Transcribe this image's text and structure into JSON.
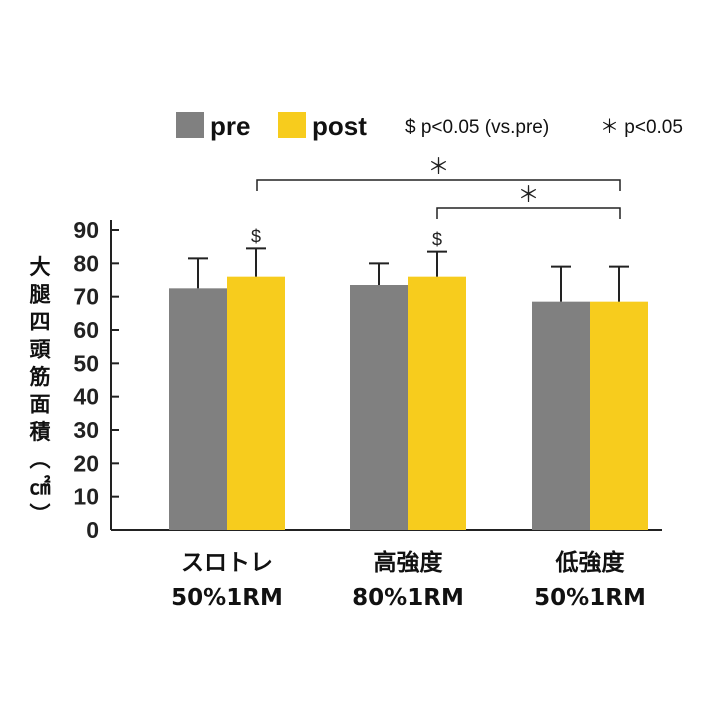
{
  "chart_data": {
    "type": "bar",
    "categories": [
      {
        "line1": "スロトレ",
        "line2": "50%1RM"
      },
      {
        "line1": "高強度",
        "line2": "80%1RM"
      },
      {
        "line1": "低強度",
        "line2": "50%1RM"
      }
    ],
    "series": [
      {
        "name": "pre",
        "color": "#808080",
        "values": [
          72.5,
          73.5,
          68.5
        ],
        "errors": [
          9,
          6.5,
          10.5
        ]
      },
      {
        "name": "post",
        "color": "#f7cc1d",
        "values": [
          76.0,
          76.0,
          68.5
        ],
        "errors": [
          8.5,
          7.5,
          10.5
        ]
      }
    ],
    "ylabel": "大腿四頭筋面積（㎠）",
    "ylim": [
      0,
      90
    ],
    "yticks": [
      "0",
      "10",
      "20",
      "30",
      "40",
      "50",
      "60",
      "70",
      "80",
      "90"
    ],
    "legend": {
      "pre": "pre",
      "post": "post",
      "note_dollar": "$  p<0.05 (vs.pre)",
      "note_star": "＊ p<0.05"
    },
    "dollar_marks": [
      {
        "category": 0,
        "series": "post",
        "text": "$"
      },
      {
        "category": 1,
        "series": "post",
        "text": "$"
      }
    ],
    "significance_brackets": [
      {
        "from": 0,
        "to": 2,
        "text": "＊"
      },
      {
        "from": 1,
        "to": 2,
        "text": "＊"
      }
    ],
    "grid": false
  }
}
